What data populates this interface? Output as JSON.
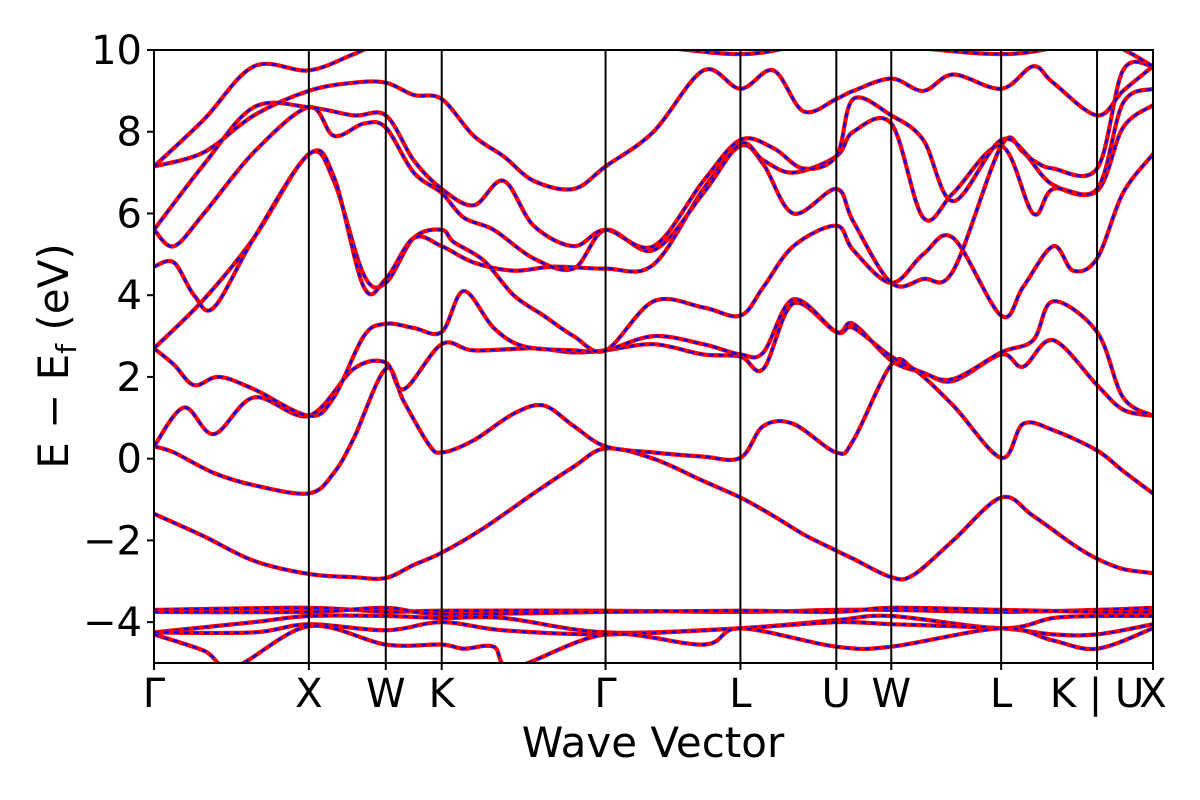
{
  "chart_data": {
    "type": "line",
    "title": "",
    "xlabel": "Wave Vector",
    "ylabel_main": "E − E",
    "ylabel_sub": "f",
    "ylabel_unit": " (eV)",
    "ylim": [
      -5,
      10
    ],
    "yticks": [
      -4,
      -2,
      0,
      2,
      4,
      6,
      8,
      10
    ],
    "ytick_labels": [
      "−4",
      "−2",
      "0",
      "2",
      "4",
      "6",
      "8",
      "10"
    ],
    "xlim": [
      0,
      1
    ],
    "kpoints": [
      {
        "label": "Γ",
        "x": 0.0
      },
      {
        "label": "X",
        "x": 0.155
      },
      {
        "label": "W",
        "x": 0.232
      },
      {
        "label": "K",
        "x": 0.288
      },
      {
        "label": "Γ",
        "x": 0.452
      },
      {
        "label": "L",
        "x": 0.587
      },
      {
        "label": "U",
        "x": 0.683
      },
      {
        "label": "W",
        "x": 0.738
      },
      {
        "label": "L",
        "x": 0.848
      },
      {
        "label": "K | U",
        "x": 0.944
      },
      {
        "label": "X",
        "x": 1.0
      }
    ],
    "grid": false,
    "series_styles": {
      "line": "#ff0000",
      "dashed": "#0000ff"
    },
    "bands": [
      [
        [
          0,
          -1.35
        ],
        [
          0.05,
          -1.9
        ],
        [
          0.1,
          -2.5
        ],
        [
          0.155,
          -2.82
        ],
        [
          0.2,
          -2.9
        ],
        [
          0.232,
          -2.92
        ],
        [
          0.26,
          -2.6
        ],
        [
          0.288,
          -2.3
        ],
        [
          0.33,
          -1.7
        ],
        [
          0.38,
          -0.85
        ],
        [
          0.42,
          -0.2
        ],
        [
          0.452,
          0.25
        ],
        [
          0.5,
          0.0
        ],
        [
          0.55,
          -0.55
        ],
        [
          0.587,
          -0.95
        ],
        [
          0.62,
          -1.4
        ],
        [
          0.65,
          -1.85
        ],
        [
          0.683,
          -2.25
        ],
        [
          0.7,
          -2.45
        ],
        [
          0.738,
          -2.9
        ],
        [
          0.76,
          -2.85
        ],
        [
          0.8,
          -2.0
        ],
        [
          0.848,
          -0.95
        ],
        [
          0.88,
          -1.4
        ],
        [
          0.92,
          -2.1
        ],
        [
          0.944,
          -2.45
        ],
        [
          0.97,
          -2.7
        ],
        [
          1.0,
          -2.8
        ]
      ],
      [
        [
          0,
          0.3
        ],
        [
          0.02,
          0.15
        ],
        [
          0.06,
          -0.35
        ],
        [
          0.1,
          -0.65
        ],
        [
          0.155,
          -0.85
        ],
        [
          0.18,
          -0.35
        ],
        [
          0.2,
          0.5
        ],
        [
          0.232,
          2.2
        ],
        [
          0.25,
          1.4
        ],
        [
          0.275,
          0.35
        ],
        [
          0.288,
          0.15
        ],
        [
          0.32,
          0.45
        ],
        [
          0.36,
          1.1
        ],
        [
          0.39,
          1.3
        ],
        [
          0.42,
          0.8
        ],
        [
          0.452,
          0.3
        ],
        [
          0.5,
          0.15
        ],
        [
          0.55,
          0.05
        ],
        [
          0.587,
          0.02
        ],
        [
          0.61,
          0.8
        ],
        [
          0.64,
          0.85
        ],
        [
          0.683,
          0.15
        ],
        [
          0.7,
          0.45
        ],
        [
          0.738,
          2.3
        ],
        [
          0.76,
          2.2
        ],
        [
          0.8,
          1.3
        ],
        [
          0.848,
          0.02
        ],
        [
          0.87,
          0.85
        ],
        [
          0.9,
          0.7
        ],
        [
          0.944,
          0.2
        ],
        [
          0.97,
          -0.3
        ],
        [
          1.0,
          -0.85
        ]
      ],
      [
        [
          0,
          0.3
        ],
        [
          0.03,
          1.25
        ],
        [
          0.06,
          0.6
        ],
        [
          0.1,
          1.5
        ],
        [
          0.155,
          1.05
        ],
        [
          0.2,
          2.2
        ],
        [
          0.232,
          2.35
        ],
        [
          0.25,
          1.7
        ],
        [
          0.288,
          2.8
        ],
        [
          0.32,
          2.65
        ],
        [
          0.38,
          2.7
        ],
        [
          0.42,
          2.6
        ],
        [
          0.452,
          2.65
        ],
        [
          0.5,
          2.8
        ],
        [
          0.55,
          2.55
        ],
        [
          0.587,
          2.5
        ],
        [
          0.61,
          2.2
        ],
        [
          0.64,
          3.8
        ],
        [
          0.683,
          3.1
        ],
        [
          0.7,
          3.3
        ],
        [
          0.738,
          2.4
        ],
        [
          0.77,
          2.1
        ],
        [
          0.8,
          1.9
        ],
        [
          0.848,
          2.55
        ],
        [
          0.87,
          2.25
        ],
        [
          0.9,
          2.9
        ],
        [
          0.944,
          1.8
        ],
        [
          0.97,
          1.2
        ],
        [
          1.0,
          1.05
        ]
      ],
      [
        [
          0,
          2.7
        ],
        [
          0.02,
          2.3
        ],
        [
          0.04,
          1.8
        ],
        [
          0.065,
          2.0
        ],
        [
          0.1,
          1.7
        ],
        [
          0.155,
          1.05
        ],
        [
          0.18,
          1.5
        ],
        [
          0.21,
          3.0
        ],
        [
          0.232,
          3.3
        ],
        [
          0.26,
          3.2
        ],
        [
          0.288,
          3.1
        ],
        [
          0.31,
          4.1
        ],
        [
          0.34,
          3.2
        ],
        [
          0.37,
          2.75
        ],
        [
          0.42,
          2.65
        ],
        [
          0.452,
          2.65
        ],
        [
          0.5,
          3.0
        ],
        [
          0.55,
          2.8
        ],
        [
          0.587,
          2.55
        ],
        [
          0.61,
          2.6
        ],
        [
          0.64,
          3.9
        ],
        [
          0.683,
          3.1
        ],
        [
          0.7,
          3.2
        ],
        [
          0.738,
          2.5
        ],
        [
          0.77,
          2.1
        ],
        [
          0.8,
          1.95
        ],
        [
          0.848,
          2.6
        ],
        [
          0.88,
          2.9
        ],
        [
          0.9,
          3.85
        ],
        [
          0.944,
          3.1
        ],
        [
          0.97,
          1.5
        ],
        [
          1.0,
          1.05
        ]
      ],
      [
        [
          0,
          2.7
        ],
        [
          0.05,
          3.9
        ],
        [
          0.1,
          5.4
        ],
        [
          0.155,
          7.45
        ],
        [
          0.18,
          6.8
        ],
        [
          0.21,
          4.5
        ],
        [
          0.232,
          4.3
        ],
        [
          0.26,
          5.4
        ],
        [
          0.288,
          5.6
        ],
        [
          0.3,
          5.3
        ],
        [
          0.33,
          4.85
        ],
        [
          0.36,
          4.0
        ],
        [
          0.39,
          3.5
        ],
        [
          0.42,
          3.0
        ],
        [
          0.452,
          2.65
        ],
        [
          0.5,
          3.85
        ],
        [
          0.55,
          3.7
        ],
        [
          0.587,
          3.5
        ],
        [
          0.61,
          4.2
        ],
        [
          0.64,
          5.2
        ],
        [
          0.683,
          5.7
        ],
        [
          0.7,
          5.1
        ],
        [
          0.738,
          4.3
        ],
        [
          0.77,
          5.0
        ],
        [
          0.8,
          5.4
        ],
        [
          0.848,
          3.5
        ],
        [
          0.87,
          4.2
        ],
        [
          0.9,
          5.2
        ],
        [
          0.92,
          4.6
        ],
        [
          0.944,
          4.9
        ],
        [
          0.97,
          6.5
        ],
        [
          1.0,
          7.45
        ]
      ],
      [
        [
          0,
          4.7
        ],
        [
          0.02,
          4.8
        ],
        [
          0.04,
          4.0
        ],
        [
          0.06,
          3.7
        ],
        [
          0.1,
          5.4
        ],
        [
          0.155,
          7.45
        ],
        [
          0.18,
          6.9
        ],
        [
          0.21,
          4.2
        ],
        [
          0.232,
          4.4
        ],
        [
          0.26,
          5.4
        ],
        [
          0.288,
          5.2
        ],
        [
          0.32,
          4.8
        ],
        [
          0.36,
          4.6
        ],
        [
          0.4,
          4.7
        ],
        [
          0.452,
          4.65
        ],
        [
          0.5,
          4.75
        ],
        [
          0.55,
          6.6
        ],
        [
          0.587,
          7.65
        ],
        [
          0.61,
          7.2
        ],
        [
          0.64,
          6.0
        ],
        [
          0.683,
          6.6
        ],
        [
          0.7,
          5.8
        ],
        [
          0.738,
          4.3
        ],
        [
          0.77,
          4.4
        ],
        [
          0.8,
          4.6
        ],
        [
          0.848,
          7.65
        ],
        [
          0.87,
          7.5
        ],
        [
          0.9,
          6.7
        ],
        [
          0.944,
          6.55
        ],
        [
          0.97,
          8.1
        ],
        [
          1.0,
          8.65
        ]
      ],
      [
        [
          0,
          5.6
        ],
        [
          0.02,
          5.2
        ],
        [
          0.05,
          6.0
        ],
        [
          0.1,
          7.5
        ],
        [
          0.155,
          8.6
        ],
        [
          0.18,
          7.9
        ],
        [
          0.21,
          8.2
        ],
        [
          0.232,
          8.1
        ],
        [
          0.26,
          7.0
        ],
        [
          0.288,
          6.5
        ],
        [
          0.31,
          5.9
        ],
        [
          0.34,
          5.6
        ],
        [
          0.38,
          4.9
        ],
        [
          0.42,
          4.65
        ],
        [
          0.452,
          5.6
        ],
        [
          0.5,
          5.1
        ],
        [
          0.55,
          6.5
        ],
        [
          0.587,
          7.7
        ],
        [
          0.61,
          7.3
        ],
        [
          0.64,
          7.0
        ],
        [
          0.683,
          7.4
        ],
        [
          0.7,
          8.0
        ],
        [
          0.738,
          8.2
        ],
        [
          0.77,
          5.9
        ],
        [
          0.8,
          6.5
        ],
        [
          0.848,
          7.65
        ],
        [
          0.88,
          6.0
        ],
        [
          0.9,
          6.6
        ],
        [
          0.944,
          6.6
        ],
        [
          0.97,
          8.7
        ],
        [
          1.0,
          9.05
        ]
      ],
      [
        [
          0,
          5.6
        ],
        [
          0.05,
          7.2
        ],
        [
          0.1,
          8.6
        ],
        [
          0.155,
          8.6
        ],
        [
          0.2,
          8.4
        ],
        [
          0.232,
          8.4
        ],
        [
          0.26,
          7.3
        ],
        [
          0.288,
          6.6
        ],
        [
          0.32,
          6.2
        ],
        [
          0.35,
          6.8
        ],
        [
          0.38,
          5.7
        ],
        [
          0.42,
          5.2
        ],
        [
          0.452,
          5.6
        ],
        [
          0.5,
          5.2
        ],
        [
          0.55,
          6.8
        ],
        [
          0.587,
          7.8
        ],
        [
          0.62,
          7.6
        ],
        [
          0.65,
          7.1
        ],
        [
          0.683,
          7.4
        ],
        [
          0.7,
          8.8
        ],
        [
          0.738,
          8.4
        ],
        [
          0.77,
          7.8
        ],
        [
          0.8,
          6.3
        ],
        [
          0.848,
          7.8
        ],
        [
          0.88,
          7.3
        ],
        [
          0.9,
          7.1
        ],
        [
          0.944,
          7.1
        ],
        [
          0.97,
          9.5
        ],
        [
          1.0,
          9.6
        ]
      ],
      [
        [
          0,
          7.15
        ],
        [
          0.05,
          7.5
        ],
        [
          0.1,
          8.4
        ],
        [
          0.155,
          9.0
        ],
        [
          0.2,
          9.2
        ],
        [
          0.232,
          9.2
        ],
        [
          0.26,
          8.9
        ],
        [
          0.288,
          8.8
        ],
        [
          0.32,
          7.9
        ],
        [
          0.35,
          7.4
        ],
        [
          0.38,
          6.8
        ],
        [
          0.42,
          6.6
        ],
        [
          0.452,
          7.15
        ],
        [
          0.5,
          8.0
        ],
        [
          0.55,
          9.5
        ],
        [
          0.587,
          9.05
        ],
        [
          0.62,
          9.5
        ],
        [
          0.65,
          8.5
        ],
        [
          0.683,
          8.8
        ],
        [
          0.7,
          9.0
        ],
        [
          0.738,
          9.3
        ],
        [
          0.77,
          9.0
        ],
        [
          0.8,
          9.4
        ],
        [
          0.848,
          9.05
        ],
        [
          0.88,
          9.6
        ],
        [
          0.9,
          9.2
        ],
        [
          0.944,
          8.4
        ],
        [
          0.97,
          9.0
        ],
        [
          1.0,
          9.6
        ]
      ],
      [
        [
          0,
          7.15
        ],
        [
          0.05,
          8.3
        ],
        [
          0.1,
          9.6
        ],
        [
          0.155,
          9.5
        ],
        [
          0.2,
          9.9
        ],
        [
          0.232,
          10.2
        ],
        [
          0.288,
          10.2
        ],
        [
          0.452,
          10.2
        ],
        [
          0.587,
          9.9
        ],
        [
          0.683,
          10.2
        ],
        [
          0.848,
          9.9
        ],
        [
          0.944,
          10.2
        ],
        [
          1.0,
          9.6
        ]
      ],
      [
        [
          0,
          -3.7
        ],
        [
          0.155,
          -3.65
        ],
        [
          0.232,
          -3.75
        ],
        [
          0.288,
          -3.72
        ],
        [
          0.452,
          -3.72
        ],
        [
          0.587,
          -3.75
        ],
        [
          0.683,
          -3.7
        ],
        [
          0.738,
          -3.7
        ],
        [
          0.848,
          -3.75
        ],
        [
          0.944,
          -3.7
        ],
        [
          1.0,
          -3.65
        ]
      ],
      [
        [
          0,
          -3.75
        ],
        [
          0.155,
          -3.75
        ],
        [
          0.232,
          -3.65
        ],
        [
          0.288,
          -3.8
        ],
        [
          0.452,
          -3.75
        ],
        [
          0.587,
          -3.72
        ],
        [
          0.683,
          -3.75
        ],
        [
          0.738,
          -3.65
        ],
        [
          0.848,
          -3.7
        ],
        [
          0.944,
          -3.75
        ],
        [
          1.0,
          -3.75
        ]
      ],
      [
        [
          0,
          -4.25
        ],
        [
          0.1,
          -4.0
        ],
        [
          0.155,
          -3.85
        ],
        [
          0.232,
          -3.85
        ],
        [
          0.288,
          -3.9
        ],
        [
          0.35,
          -3.9
        ],
        [
          0.452,
          -4.25
        ],
        [
          0.587,
          -4.15
        ],
        [
          0.683,
          -3.95
        ],
        [
          0.738,
          -3.85
        ],
        [
          0.848,
          -4.15
        ],
        [
          0.9,
          -3.9
        ],
        [
          0.944,
          -3.85
        ],
        [
          1.0,
          -3.85
        ]
      ],
      [
        [
          0,
          -4.25
        ],
        [
          0.1,
          -4.25
        ],
        [
          0.155,
          -4.05
        ],
        [
          0.232,
          -4.2
        ],
        [
          0.288,
          -4.0
        ],
        [
          0.35,
          -4.2
        ],
        [
          0.452,
          -4.3
        ],
        [
          0.587,
          -4.15
        ],
        [
          0.683,
          -4.0
        ],
        [
          0.738,
          -4.05
        ],
        [
          0.848,
          -4.15
        ],
        [
          0.9,
          -4.3
        ],
        [
          0.944,
          -4.3
        ],
        [
          1.0,
          -4.05
        ]
      ],
      [
        [
          0,
          -4.3
        ],
        [
          0.05,
          -4.7
        ],
        [
          0.08,
          -5.1
        ],
        [
          0.155,
          -4.1
        ],
        [
          0.232,
          -4.55
        ],
        [
          0.288,
          -4.55
        ],
        [
          0.31,
          -4.65
        ],
        [
          0.34,
          -4.6
        ],
        [
          0.36,
          -5.1
        ],
        [
          0.452,
          -4.3
        ],
        [
          0.55,
          -4.55
        ],
        [
          0.587,
          -4.15
        ],
        [
          0.683,
          -4.6
        ],
        [
          0.738,
          -4.6
        ],
        [
          0.848,
          -4.15
        ],
        [
          0.9,
          -4.45
        ],
        [
          0.944,
          -4.65
        ],
        [
          1.0,
          -4.15
        ]
      ]
    ]
  }
}
